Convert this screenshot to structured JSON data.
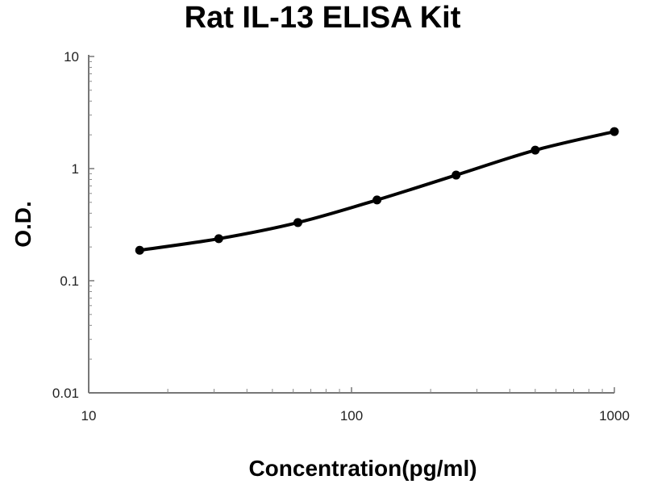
{
  "chart_data": {
    "type": "line",
    "title": "Rat IL-13 ELISA Kit",
    "xlabel": "Concentration(pg/ml)",
    "ylabel": "O.D.",
    "xscale": "log",
    "yscale": "log",
    "xlim": [
      10,
      1000
    ],
    "ylim": [
      0.01,
      10
    ],
    "xticks": [
      "10",
      "100",
      "1000"
    ],
    "yticks": [
      "0.01",
      "0.1",
      "1",
      "10"
    ],
    "grid": false,
    "series": [
      {
        "x": [
          15.63,
          31.25,
          62.5,
          125,
          250,
          500,
          1000
        ],
        "y": [
          0.187,
          0.237,
          0.33,
          0.525,
          0.875,
          1.46,
          2.14
        ],
        "color": "#000000",
        "marker": "circle"
      }
    ]
  }
}
